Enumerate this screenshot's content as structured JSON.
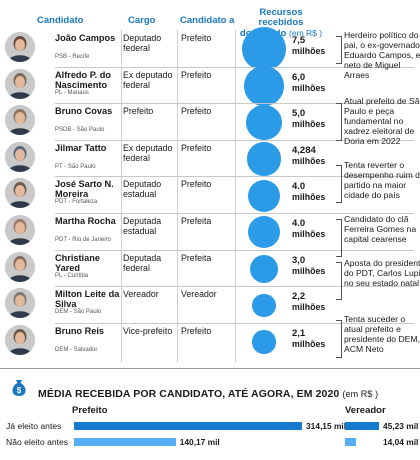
{
  "headers": {
    "candidato": "Candidato",
    "cargo": "Cargo",
    "candidato_a": "Candidato a",
    "recursos": "Recursos recebidos",
    "recursos2": "do partido",
    "recursos_unit": "(em R$ )"
  },
  "candidates": [
    {
      "name": "João Campos",
      "party": "PSB - Recife",
      "cargo": "Deputado federal",
      "candidato_a": "Prefeito",
      "value_label": "7,5",
      "unit": "milhões",
      "avatar_color": "#6b4a3a"
    },
    {
      "name": "Alfredo P. do Nascimento",
      "party": "PL - Manaus",
      "cargo": "Ex deputado federal",
      "candidato_a": "Prefeito",
      "value_label": "6,0",
      "unit": "milhões",
      "avatar_color": "#7a6a60"
    },
    {
      "name": "Bruno Covas",
      "party": "PSDB - São Paulo",
      "cargo": "Prefeito",
      "candidato_a": "Prefeito",
      "value_label": "5,0",
      "unit": "milhões",
      "avatar_color": "#8a7462"
    },
    {
      "name": "Jilmar Tatto",
      "party": "PT - São Paulo",
      "cargo": "Ex deputado federal",
      "candidato_a": "Prefeito",
      "value_label": "4,284",
      "unit": "milhões",
      "avatar_color": "#5c6a7a"
    },
    {
      "name": "José Sarto N. Moreira",
      "party": "PDT - Fortaleza",
      "cargo": "Deputado estadual",
      "candidato_a": "Prefeito",
      "value_label": "4.0",
      "unit": "milhões",
      "avatar_color": "#6a5a50"
    },
    {
      "name": "Martha Rocha",
      "party": "PDT - Rio de Janeiro",
      "cargo": "Deputada estadual",
      "candidato_a": "Prefeita",
      "value_label": "4.0",
      "unit": "milhões",
      "avatar_color": "#9a7a6a"
    },
    {
      "name": "Christiane Yared",
      "party": "PL - Curitiba",
      "cargo": "Deputada federal",
      "candidato_a": "Prefeita",
      "value_label": "3,0",
      "unit": "milhões",
      "avatar_color": "#8a6a5a"
    },
    {
      "name": "Milton Leite da Silva",
      "party": "DEM - São Paulo",
      "cargo": "Vereador",
      "candidato_a": "Vereador",
      "value_label": "2,2",
      "unit": "milhões",
      "avatar_color": "#7a7a7a"
    },
    {
      "name": "Bruno Reis",
      "party": "DEM - Salvador",
      "cargo": "Vice-prefeito",
      "candidato_a": "Prefeito",
      "value_label": "2,1",
      "unit": "milhões",
      "avatar_color": "#6a5a4a"
    }
  ],
  "notes": [
    "Herdeiro político do pai, o ex-governador Eduardo Campos, e neto de Miguel Arraes",
    "Atual prefeito de São Paulo e peça fundamental no xadrez eleitoral de Doria em 2022",
    "Tenta reverter o desempenho ruim do partido na maior cidade do país",
    "Candidato do clã Ferreira Gomes na capital cearense",
    "Aposta do presidente do PDT, Carlos Lupi, no seu estado natal",
    "Tenta suceder o atual prefeito e presidente do DEM, ACM Neto"
  ],
  "section": {
    "title": "MÉDIA RECEBIDA POR CANDIDATO, ATÉ AGORA, EM 2020",
    "unit": "(em R$ )",
    "prefeito_header": "Prefeito",
    "vereador_header": "Vereador"
  },
  "chart_data": [
    {
      "type": "scatter",
      "title": "Recursos recebidos do partido",
      "unit": "(em R$ )",
      "categories": [
        "João Campos",
        "Alfredo P. do Nascimento",
        "Bruno Covas",
        "Jilmar Tatto",
        "José Sarto N. Moreira",
        "Martha Rocha",
        "Christiane Yared",
        "Milton Leite da Silva",
        "Bruno Reis"
      ],
      "values": [
        7.5,
        6.0,
        5.0,
        4.284,
        4.0,
        4.0,
        3.0,
        2.2,
        2.1
      ],
      "value_unit": "milhões",
      "color": "#2b9be8"
    },
    {
      "type": "bar",
      "title": "MÉDIA RECEBIDA POR CANDIDATO, ATÉ AGORA, EM 2020",
      "categories": [
        "Já eleito antes",
        "Não eleito antes"
      ],
      "series": [
        {
          "name": "Prefeito",
          "values": [
            314.15,
            140.17
          ],
          "labels": [
            "314,15 mil",
            "140,17 mil"
          ]
        },
        {
          "name": "Vereador",
          "values": [
            45.23,
            14.04
          ],
          "labels": [
            "45,23 mil",
            "14,04 mil"
          ]
        }
      ],
      "colors": {
        "already_elected": "#1679d0",
        "not_elected": "#55aef2"
      }
    }
  ]
}
